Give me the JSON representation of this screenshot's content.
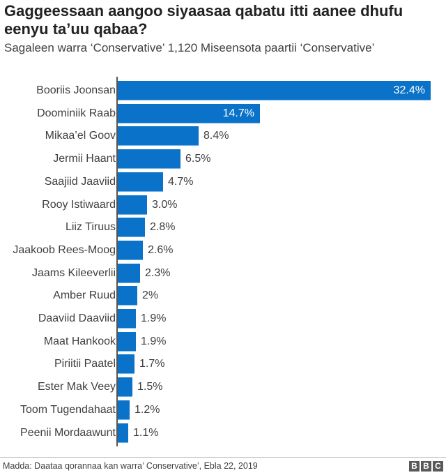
{
  "header": {
    "title": "Gaggeessaan aangoo siyaasaa qabatu itti aanee dhufu eenyu ta’uu qabaa?",
    "subtitle": "Sagaleen warra ‘Conservative’ 1,120   Miseensota paartii ‘Conservative’"
  },
  "footer": {
    "source": "Madda: Daataa qorannaa kan warra’ Conservative’, Ebla 22, 2019",
    "logo": [
      "B",
      "B",
      "C"
    ]
  },
  "colors": {
    "bar": "#0a72c8",
    "text": "#3f3f42",
    "axis": "#555555"
  },
  "chart_data": {
    "type": "bar",
    "orientation": "horizontal",
    "title": "Gaggeessaan aangoo siyaasaa qabatu itti aanee dhufu eenyu ta’uu qabaa?",
    "subtitle": "Sagaleen warra ‘Conservative’ 1,120   Miseensota paartii ‘Conservative’",
    "xlabel": "",
    "ylabel": "",
    "grid": false,
    "legend": null,
    "categories": [
      "Booriis Joonsan",
      "Doominiik Raab",
      "Mikaa’el Goov",
      "Jermii Haant",
      "Saajiid Jaaviid",
      "Rooy Istiwaard",
      "Liiz Tiruus",
      "Jaakoob Rees-Moog",
      "Jaams Kileeverlii",
      "Amber Ruud",
      "Daaviid Daaviid",
      "Maat Hankook",
      "Piriitii Paatel",
      "Ester Mak Veey",
      "Toom Tugendahaat",
      "Peenii Mordaawunt"
    ],
    "values": [
      32.4,
      14.7,
      8.4,
      6.5,
      4.7,
      3.0,
      2.8,
      2.6,
      2.3,
      2,
      1.9,
      1.9,
      1.7,
      1.5,
      1.2,
      1.1
    ],
    "value_labels": [
      "32.4%",
      "14.7%",
      "8.4%",
      "6.5%",
      "4.7%",
      "3.0%",
      "2.8%",
      "2.6%",
      "2.3%",
      "2%",
      "1.9%",
      "1.9%",
      "1.7%",
      "1.5%",
      "1.2%",
      "1.1%"
    ],
    "source": "Madda: Daataa qorannaa kan warra’ Conservative’, Ebla 22, 2019"
  }
}
